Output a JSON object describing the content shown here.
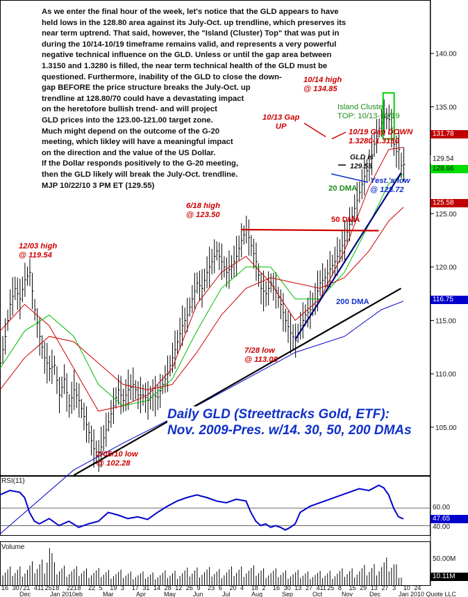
{
  "commentary": "As we enter the final hour of the week, let's notice that the GLD appears to have\nheld lows in the 128.80 area against its July-Oct. up trendline, which preserves its\nnear term uptrend. That said, however, the \"Island (Cluster) Top\" that was put in\nduring the 10/14-10/19 timeframe remains valid, and represents a very powerful\nnegative technical influence on the GLD. Unless or until the gap area between\n1.3150 and 1.3280 is filled, the near term technical health of the GLD must be\nquestioned. Furthermore, inability of the GLD to close the down-\ngap BEFORE the price structure breaks the July-Oct. up\n trendline at 128.80/70 could have a devastating impact\non the heretofore bullish trend- and will project\nGLD prices into the 123.00-121.00 target zone.\nMuch might depend on the outcome  of the G-20\nmeeting, which likley will have a meaningful impact\non the direction and the value of the US Dollar.\nIf the Dollar responds positively to the G-20 meeting,\nthen the GLD likely will break the July-Oct. trendline.\nMJP  10/22/10  3 PM ET  (129.55)",
  "chart_title": {
    "line1": "Daily GLD  (Streettracks Gold, ETF):",
    "line2": "Nov. 2009-Pres. w/14. 30, 50, 200 DMAs"
  },
  "annotations": {
    "high_1203": "12/03 high\n@ 119.54",
    "high_0618": "6/18 high\n@ 123.50",
    "high_1014": "10/14 high\n@ 134.85",
    "gap_up": "10/13 Gap\nUP",
    "island": "Island Cluster\nTOP: 10/13-10/19",
    "gap_down": "10/19 Gap DOWN\n1.3280-1.3150",
    "gld_is": "GLD is\n129.55",
    "yest_low": "Yest.'s low\n@ 128.72",
    "dma20": "20 DMA",
    "dma50": "50 DMA",
    "dma200": "200 DMA",
    "low_0728": "7/28 low\n@ 113.08",
    "low_0205": "2/05/10 low\n@ 102.28"
  },
  "price_tags": [
    {
      "text": "131.78",
      "color": "#c00000",
      "fg": "#ffffff"
    },
    {
      "text": "129.54",
      "color": "#ffffff",
      "fg": "#111111"
    },
    {
      "text": "128.66",
      "color": "#00dd00",
      "fg": "#111111"
    },
    {
      "text": "125.58",
      "color": "#c00000",
      "fg": "#ffffff"
    },
    {
      "text": "116.75",
      "color": "#0000cc",
      "fg": "#ffffff"
    }
  ],
  "rsi": {
    "label": "RSI(11)",
    "ticks": [
      "60.00",
      "40.00"
    ],
    "tag": "47.65",
    "tag_color": "#0000cc"
  },
  "volume": {
    "label": "Volume",
    "ticks": [
      "50.00M"
    ],
    "tag": "10.11M"
  },
  "x_axis": {
    "day_labels": [
      "16",
      "307",
      "21",
      "411",
      "251",
      "8",
      "221",
      "8",
      "22",
      "5",
      "19",
      "3",
      "17",
      "31",
      "14",
      "28",
      "12",
      "26",
      "9",
      "23",
      "6",
      "20",
      "4",
      "18",
      "2",
      "16",
      "30",
      "13",
      "27",
      "411",
      "25",
      "8",
      "15",
      "29",
      "13",
      "27",
      "3",
      "10",
      "24"
    ],
    "month_labels": [
      "Dec",
      "Jan 2010eb",
      "Mar",
      "Apr",
      "May",
      "Jun",
      "Jul",
      "Aug",
      "Sep",
      "Oct",
      "Nov",
      "Dec",
      "Jan 2010 Quote LLC"
    ]
  },
  "colors": {
    "price": "#000000",
    "dma14": "#cc0000",
    "dma30": "#00bb00",
    "dma50": "#cc0000",
    "dma200": "#0000cc",
    "trend": "#000000",
    "trend_blue": "#000080",
    "rsi": "#0000cc",
    "annot_red": "#cc0000",
    "annot_green": "#1e8c1e",
    "annot_blue": "#1030c8"
  },
  "chart_data": {
    "type": "line",
    "ylim": [
      100.5,
      145
    ],
    "y_ticks": [
      105,
      110,
      115,
      120,
      125,
      130,
      135,
      140
    ],
    "series": [
      {
        "values": [
          [
            0,
            111.0
          ],
          [
            2,
            113.5
          ],
          [
            4,
            116.5
          ],
          [
            6,
            118.0
          ],
          [
            8,
            117.0
          ],
          [
            10,
            118.8
          ],
          [
            12,
            119.5
          ],
          [
            14,
            116.0
          ],
          [
            16,
            113.5
          ],
          [
            18,
            111.5
          ],
          [
            20,
            110.5
          ],
          [
            22,
            110.8
          ],
          [
            24,
            108.0
          ],
          [
            26,
            109.5
          ],
          [
            28,
            107.0
          ],
          [
            30,
            108.5
          ],
          [
            32,
            107.5
          ],
          [
            34,
            106.0
          ],
          [
            36,
            104.5
          ],
          [
            38,
            103.0
          ],
          [
            40,
            102.3
          ],
          [
            42,
            104.0
          ],
          [
            44,
            105.5
          ],
          [
            46,
            107.0
          ],
          [
            48,
            108.5
          ],
          [
            50,
            107.5
          ],
          [
            52,
            108.5
          ],
          [
            54,
            109.0
          ],
          [
            56,
            108.0
          ],
          [
            58,
            108.0
          ],
          [
            60,
            107.5
          ],
          [
            62,
            108.0
          ],
          [
            64,
            107.8
          ],
          [
            66,
            109.0
          ],
          [
            68,
            110.0
          ],
          [
            70,
            111.5
          ],
          [
            72,
            113.0
          ],
          [
            74,
            114.5
          ],
          [
            76,
            115.5
          ],
          [
            78,
            117.0
          ],
          [
            80,
            118.5
          ],
          [
            82,
            118.0
          ],
          [
            84,
            119.5
          ],
          [
            86,
            120.5
          ],
          [
            88,
            121.5
          ],
          [
            90,
            120.5
          ],
          [
            92,
            119.5
          ],
          [
            94,
            120.0
          ],
          [
            96,
            121.0
          ],
          [
            98,
            122.5
          ],
          [
            100,
            123.5
          ],
          [
            102,
            122.0
          ],
          [
            104,
            120.5
          ],
          [
            106,
            118.0
          ],
          [
            108,
            117.5
          ],
          [
            110,
            118.5
          ],
          [
            112,
            117.8
          ],
          [
            114,
            116.5
          ],
          [
            116,
            115.0
          ],
          [
            118,
            113.8
          ],
          [
            120,
            113.1
          ],
          [
            122,
            114.5
          ],
          [
            124,
            115.5
          ],
          [
            126,
            116.0
          ],
          [
            128,
            117.0
          ],
          [
            130,
            118.5
          ],
          [
            132,
            119.0
          ],
          [
            134,
            119.8
          ],
          [
            136,
            120.5
          ],
          [
            138,
            121.5
          ],
          [
            140,
            122.5
          ],
          [
            142,
            124.0
          ],
          [
            144,
            125.5
          ],
          [
            146,
            127.0
          ],
          [
            148,
            128.5
          ],
          [
            150,
            129.5
          ],
          [
            152,
            131.5
          ],
          [
            154,
            133.0
          ],
          [
            156,
            134.0
          ],
          [
            158,
            133.8
          ],
          [
            159,
            133.0
          ],
          [
            160,
            131.5
          ],
          [
            161,
            130.8
          ],
          [
            162,
            131.0
          ],
          [
            163,
            129.5
          ],
          [
            164,
            129.6
          ]
        ]
      },
      {
        "values": [
          [
            0,
            114.0
          ],
          [
            10,
            116.5
          ],
          [
            20,
            114.5
          ],
          [
            30,
            110.5
          ],
          [
            40,
            106.5
          ],
          [
            50,
            107.0
          ],
          [
            60,
            108.0
          ],
          [
            70,
            110.5
          ],
          [
            80,
            116.5
          ],
          [
            90,
            119.5
          ],
          [
            100,
            121.0
          ],
          [
            110,
            118.5
          ],
          [
            120,
            115.0
          ],
          [
            130,
            117.0
          ],
          [
            140,
            121.5
          ],
          [
            150,
            127.5
          ],
          [
            158,
            131.0
          ],
          [
            164,
            131.2
          ]
        ]
      },
      {
        "values": [
          [
            0,
            110.5
          ],
          [
            10,
            114.0
          ],
          [
            20,
            115.5
          ],
          [
            30,
            113.5
          ],
          [
            40,
            109.0
          ],
          [
            50,
            107.0
          ],
          [
            60,
            107.5
          ],
          [
            70,
            109.5
          ],
          [
            80,
            114.0
          ],
          [
            90,
            118.0
          ],
          [
            100,
            120.0
          ],
          [
            110,
            120.0
          ],
          [
            120,
            117.0
          ],
          [
            130,
            117.0
          ],
          [
            140,
            119.5
          ],
          [
            150,
            124.0
          ],
          [
            158,
            127.8
          ],
          [
            164,
            128.7
          ]
        ]
      },
      {
        "values": [
          [
            0,
            108.5
          ],
          [
            10,
            111.5
          ],
          [
            20,
            113.5
          ],
          [
            30,
            113.0
          ],
          [
            40,
            111.0
          ],
          [
            50,
            109.0
          ],
          [
            60,
            108.5
          ],
          [
            70,
            109.0
          ],
          [
            80,
            112.0
          ],
          [
            90,
            115.5
          ],
          [
            100,
            118.0
          ],
          [
            110,
            119.0
          ],
          [
            120,
            118.5
          ],
          [
            130,
            118.0
          ],
          [
            140,
            119.0
          ],
          [
            150,
            121.5
          ],
          [
            158,
            124.3
          ],
          [
            164,
            125.6
          ]
        ]
      },
      {
        "values": [
          [
            0,
            95.0
          ],
          [
            30,
            101.0
          ],
          [
            50,
            103.5
          ],
          [
            80,
            107.0
          ],
          [
            100,
            109.5
          ],
          [
            120,
            112.0
          ],
          [
            140,
            113.5
          ],
          [
            155,
            116.0
          ],
          [
            164,
            116.8
          ]
        ]
      }
    ],
    "trendlines": [
      {
        "from": [
          30,
          100.5
        ],
        "to": [
          163,
          118.0
        ],
        "color": "trend"
      },
      {
        "from": [
          120,
          113.2
        ],
        "to": [
          163,
          128.8
        ],
        "color": "trend_blue"
      },
      {
        "from": [
          98,
          123.5
        ],
        "to": [
          154,
          123.4
        ],
        "color": "dma50"
      }
    ],
    "rsi_values": [
      [
        0,
        75
      ],
      [
        4,
        80
      ],
      [
        8,
        78
      ],
      [
        10,
        72
      ],
      [
        12,
        55
      ],
      [
        14,
        45
      ],
      [
        16,
        42
      ],
      [
        20,
        48
      ],
      [
        24,
        40
      ],
      [
        28,
        45
      ],
      [
        32,
        38
      ],
      [
        36,
        42
      ],
      [
        40,
        45
      ],
      [
        44,
        55
      ],
      [
        48,
        52
      ],
      [
        52,
        48
      ],
      [
        56,
        50
      ],
      [
        60,
        47
      ],
      [
        64,
        55
      ],
      [
        68,
        62
      ],
      [
        72,
        68
      ],
      [
        76,
        72
      ],
      [
        80,
        75
      ],
      [
        84,
        72
      ],
      [
        88,
        68
      ],
      [
        92,
        66
      ],
      [
        96,
        70
      ],
      [
        100,
        68
      ],
      [
        102,
        55
      ],
      [
        104,
        45
      ],
      [
        106,
        40
      ],
      [
        108,
        42
      ],
      [
        110,
        38
      ],
      [
        112,
        40
      ],
      [
        114,
        38
      ],
      [
        116,
        35
      ],
      [
        118,
        38
      ],
      [
        120,
        42
      ],
      [
        122,
        55
      ],
      [
        126,
        62
      ],
      [
        130,
        66
      ],
      [
        134,
        70
      ],
      [
        138,
        74
      ],
      [
        142,
        78
      ],
      [
        146,
        82
      ],
      [
        150,
        80
      ],
      [
        154,
        86
      ],
      [
        156,
        83
      ],
      [
        158,
        75
      ],
      [
        160,
        60
      ],
      [
        162,
        50
      ],
      [
        164,
        47.65
      ]
    ],
    "rsi_ylim": [
      30,
      95
    ],
    "volume_values": [
      [
        0,
        18
      ],
      [
        10,
        22
      ],
      [
        18,
        30
      ],
      [
        20,
        55
      ],
      [
        22,
        24
      ],
      [
        30,
        20
      ],
      [
        40,
        18
      ],
      [
        50,
        16
      ],
      [
        60,
        14
      ],
      [
        70,
        16
      ],
      [
        80,
        20
      ],
      [
        90,
        18
      ],
      [
        100,
        22
      ],
      [
        110,
        18
      ],
      [
        120,
        16
      ],
      [
        130,
        15
      ],
      [
        140,
        18
      ],
      [
        150,
        22
      ],
      [
        158,
        30
      ],
      [
        160,
        28
      ],
      [
        164,
        10
      ]
    ],
    "volume_ylim": [
      0,
      60
    ]
  }
}
